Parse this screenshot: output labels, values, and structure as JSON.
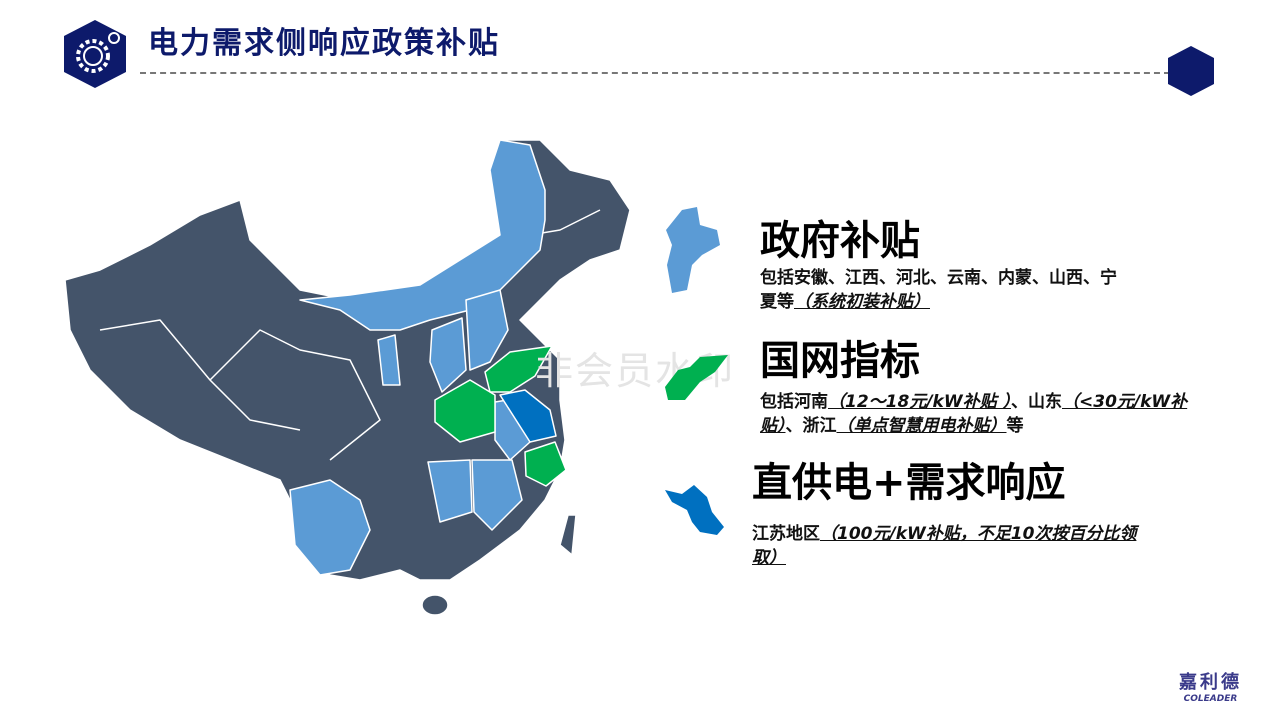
{
  "header": {
    "title": "电力需求侧响应政策补贴"
  },
  "watermark": "非会员水印",
  "colors": {
    "navy": "#0d1a6b",
    "dark_province": "#44546a",
    "light_blue": "#5b9bd5",
    "green": "#00b050",
    "blue": "#0070c0"
  },
  "sections": [
    {
      "title": "政府补贴",
      "text": "包括安徽、江西、河北、云南、内蒙、山西、宁夏等",
      "note": "（系统初装补贴）",
      "icon": "hebei-map-icon"
    },
    {
      "title": "国网指标",
      "text1": "包括河南",
      "note1": "（12～18元/kW补贴 ）",
      "text2": "、山东",
      "note2": "（<30元/kW补贴）",
      "text3": "、浙江",
      "note3": "（单点智慧用电补贴）",
      "text4": "等",
      "icon": "shandong-map-icon"
    },
    {
      "title": "直供电+需求响应",
      "text": "江苏地区",
      "note": "（100元/kW补贴，不足10次按百分比领取）",
      "icon": "jiangsu-map-icon"
    }
  ],
  "logo": {
    "cn": "嘉利德",
    "en": "COLEADER"
  }
}
